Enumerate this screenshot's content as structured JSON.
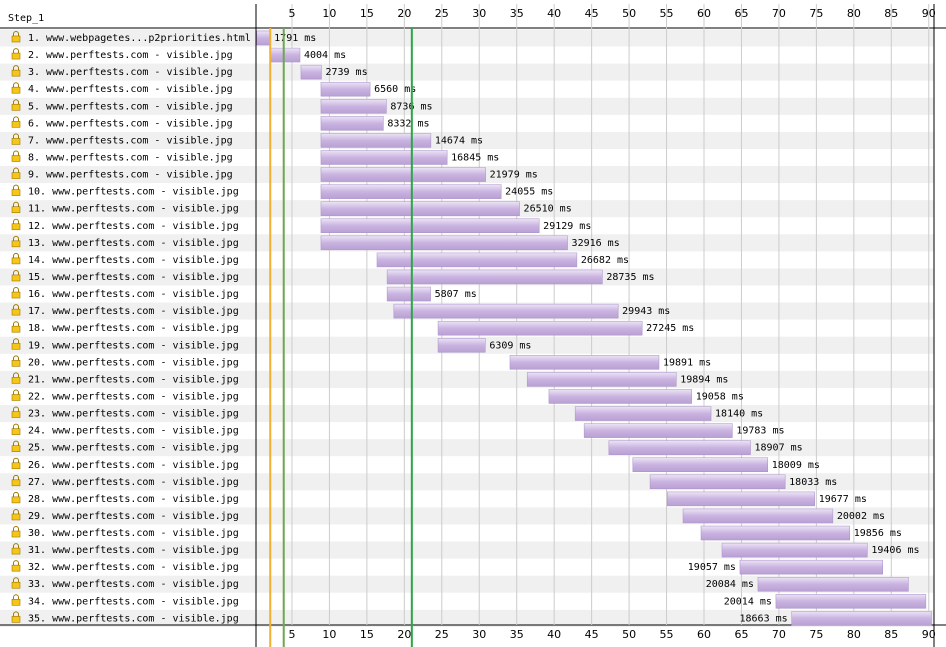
{
  "chart_data": {
    "type": "waterfall",
    "title": "Step_1",
    "categories": [
      "1. www.webpagetes...p2priorities.html",
      "2. www.perftests.com - visible.jpg",
      "3. www.perftests.com - visible.jpg",
      "4. www.perftests.com - visible.jpg",
      "5. www.perftests.com - visible.jpg",
      "6. www.perftests.com - visible.jpg",
      "7. www.perftests.com - visible.jpg",
      "8. www.perftests.com - visible.jpg",
      "9. www.perftests.com - visible.jpg",
      "10. www.perftests.com - visible.jpg",
      "11. www.perftests.com - visible.jpg",
      "12. www.perftests.com - visible.jpg",
      "13. www.perftests.com - visible.jpg",
      "14. www.perftests.com - visible.jpg",
      "15. www.perftests.com - visible.jpg",
      "16. www.perftests.com - visible.jpg",
      "17. www.perftests.com - visible.jpg",
      "18. www.perftests.com - visible.jpg",
      "19. www.perftests.com - visible.jpg",
      "20. www.perftests.com - visible.jpg",
      "21. www.perftests.com - visible.jpg",
      "22. www.perftests.com - visible.jpg",
      "23. www.perftests.com - visible.jpg",
      "24. www.perftests.com - visible.jpg",
      "25. www.perftests.com - visible.jpg",
      "26. www.perftests.com - visible.jpg",
      "27. www.perftests.com - visible.jpg",
      "28. www.perftests.com - visible.jpg",
      "29. www.perftests.com - visible.jpg",
      "30. www.perftests.com - visible.jpg",
      "31. www.perftests.com - visible.jpg",
      "32. www.perftests.com - visible.jpg",
      "33. www.perftests.com - visible.jpg",
      "34. www.perftests.com - visible.jpg",
      "35. www.perftests.com - visible.jpg"
    ],
    "starts": [
      0.3,
      2.07,
      6.2,
      8.87,
      8.87,
      8.87,
      8.87,
      8.87,
      8.87,
      8.87,
      8.87,
      8.87,
      8.87,
      16.35,
      17.7,
      17.7,
      18.6,
      24.5,
      24.5,
      34.1,
      36.4,
      39.3,
      42.8,
      44.0,
      47.3,
      50.5,
      52.8,
      55.1,
      57.2,
      59.6,
      62.4,
      64.8,
      67.2,
      69.6,
      71.7
    ],
    "values": [
      1.791,
      4.004,
      2.739,
      6.56,
      8.736,
      8.332,
      14.674,
      16.845,
      21.979,
      24.055,
      26.51,
      29.129,
      32.916,
      26.682,
      28.735,
      5.807,
      29.943,
      27.245,
      6.309,
      19.891,
      19.894,
      19.058,
      18.14,
      19.783,
      18.907,
      18.009,
      18.033,
      19.677,
      20.002,
      19.856,
      19.406,
      19.057,
      20.084,
      20.014,
      18.663
    ],
    "value_labels": [
      "1791 ms",
      "4004 ms",
      "2739 ms",
      "6560 ms",
      "8736 ms",
      "8332 ms",
      "14674 ms",
      "16845 ms",
      "21979 ms",
      "24055 ms",
      "26510 ms",
      "29129 ms",
      "32916 ms",
      "26682 ms",
      "28735 ms",
      "5807 ms",
      "29943 ms",
      "27245 ms",
      "6309 ms",
      "19891 ms",
      "19894 ms",
      "19058 ms",
      "18140 ms",
      "19783 ms",
      "18907 ms",
      "18009 ms",
      "18033 ms",
      "19677 ms",
      "20002 ms",
      "19856 ms",
      "19406 ms",
      "19057 ms",
      "20084 ms",
      "20014 ms",
      "18663 ms"
    ],
    "color": "#c9b3e0",
    "xlim": [
      0,
      90.7
    ],
    "xticks": [
      5,
      10,
      15,
      20,
      25,
      30,
      35,
      40,
      45,
      50,
      55,
      60,
      65,
      70,
      75,
      80,
      85,
      90
    ],
    "vlines": [
      {
        "value": 2.1,
        "color": "#f0b030"
      },
      {
        "value": 3.9,
        "color": "#6aa84f"
      },
      {
        "value": 21.0,
        "color": "#28a745"
      }
    ],
    "grid": true
  }
}
